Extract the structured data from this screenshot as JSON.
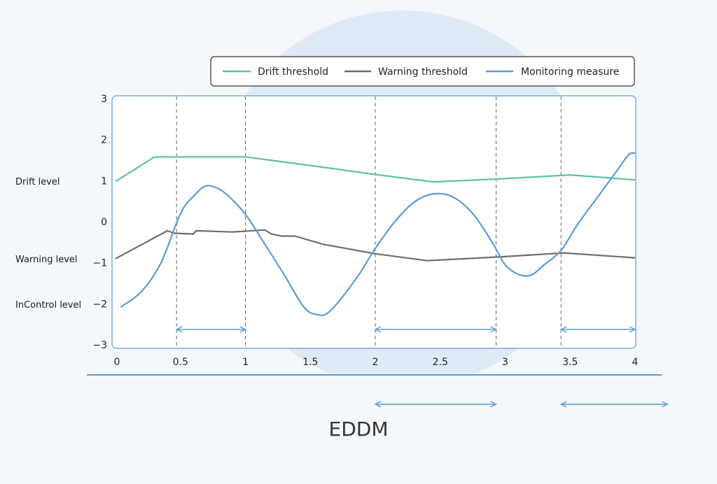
{
  "chart_data": {
    "type": "line",
    "title": "",
    "caption": "EDDM",
    "xlabel": "",
    "ylabel": "",
    "xlim": [
      0,
      4
    ],
    "ylim": [
      -3,
      3
    ],
    "x_ticks": [
      "0",
      "0.5",
      "1",
      "1.5",
      "2",
      "2.5",
      "3",
      "3.5",
      "4"
    ],
    "y_ticks": [
      "3",
      "2",
      "1",
      "0",
      "-1",
      "-2",
      "-3"
    ],
    "level_labels": {
      "drift": "Drift level",
      "warning": "Warning level",
      "incontrol": "InControl level"
    },
    "legend": [
      "Drift threshold",
      "Warning threshold",
      "Monitoring measure"
    ],
    "legend_position": "top",
    "vlines": [
      0.47,
      1.0,
      2.0,
      2.93,
      3.43
    ],
    "intervals_inside": [
      [
        0.47,
        1.0
      ],
      [
        2.0,
        2.93
      ],
      [
        3.43,
        4.0
      ]
    ],
    "intervals_below": [
      [
        2.0,
        2.93
      ],
      [
        3.43,
        4.25
      ]
    ],
    "series": [
      {
        "name": "Drift threshold",
        "color": "#5cc39a",
        "points": [
          [
            0,
            0.98
          ],
          [
            0.3,
            1.58
          ],
          [
            1.0,
            1.58
          ],
          [
            1.5,
            1.37
          ],
          [
            2.0,
            1.15
          ],
          [
            2.45,
            0.97
          ],
          [
            3.0,
            1.05
          ],
          [
            3.5,
            1.14
          ],
          [
            4.0,
            1.02
          ]
        ]
      },
      {
        "name": "Warning threshold",
        "color": "#6a6e73",
        "points": [
          [
            0,
            -0.9
          ],
          [
            0.4,
            -0.22
          ],
          [
            0.45,
            -0.28
          ],
          [
            0.6,
            -0.3
          ],
          [
            0.62,
            -0.22
          ],
          [
            0.9,
            -0.25
          ],
          [
            1.15,
            -0.2
          ],
          [
            1.2,
            -0.3
          ],
          [
            1.28,
            -0.35
          ],
          [
            1.38,
            -0.35
          ],
          [
            1.6,
            -0.55
          ],
          [
            2.0,
            -0.78
          ],
          [
            2.4,
            -0.95
          ],
          [
            3.0,
            -0.85
          ],
          [
            3.45,
            -0.76
          ],
          [
            4.0,
            -0.88
          ]
        ]
      },
      {
        "name": "Monitoring measure",
        "color": "#5b9bd5",
        "points": [
          [
            0.04,
            -2.08
          ],
          [
            0.2,
            -1.7
          ],
          [
            0.35,
            -1.0
          ],
          [
            0.5,
            0.2
          ],
          [
            0.6,
            0.62
          ],
          [
            0.68,
            0.85
          ],
          [
            0.75,
            0.86
          ],
          [
            0.85,
            0.68
          ],
          [
            1.0,
            0.18
          ],
          [
            1.15,
            -0.55
          ],
          [
            1.3,
            -1.3
          ],
          [
            1.45,
            -2.08
          ],
          [
            1.55,
            -2.26
          ],
          [
            1.65,
            -2.18
          ],
          [
            1.85,
            -1.4
          ],
          [
            2.0,
            -0.65
          ],
          [
            2.15,
            0.0
          ],
          [
            2.3,
            0.48
          ],
          [
            2.45,
            0.68
          ],
          [
            2.6,
            0.6
          ],
          [
            2.75,
            0.2
          ],
          [
            2.9,
            -0.5
          ],
          [
            3.0,
            -1.05
          ],
          [
            3.1,
            -1.28
          ],
          [
            3.2,
            -1.3
          ],
          [
            3.3,
            -1.05
          ],
          [
            3.43,
            -0.7
          ],
          [
            3.55,
            -0.1
          ],
          [
            3.7,
            0.55
          ],
          [
            3.85,
            1.2
          ],
          [
            3.95,
            1.63
          ],
          [
            4.0,
            1.67
          ]
        ]
      }
    ]
  }
}
